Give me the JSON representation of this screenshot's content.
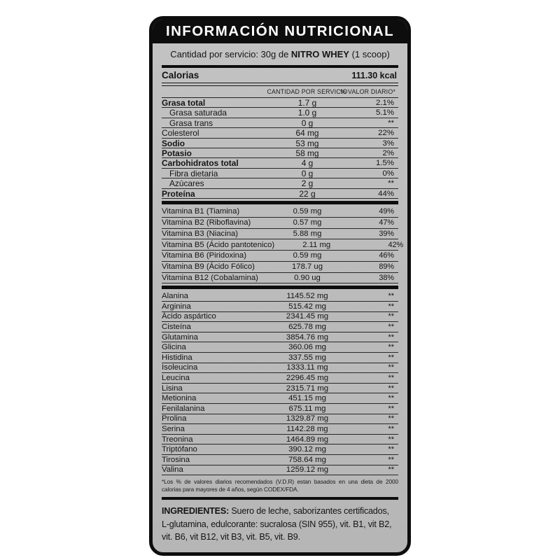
{
  "colors": {
    "page_background": "#ffffff",
    "label_background": "#bcbcbc",
    "band_background": "#0d0d0d",
    "text": "#141414"
  },
  "label": {
    "title": "INFORMACIÓN NUTRICIONAL",
    "serving_line": {
      "prefix": "Cantidad por servicio: 30g de ",
      "product": "NITRO WHEY",
      "suffix": " (1 scoop)"
    },
    "calories": {
      "label": "Calorias",
      "value": "111.30 kcal"
    },
    "columns": {
      "amount": "CANTIDAD POR SERVICIO",
      "dv": "% VALOR DIARIO*"
    },
    "nutrients": [
      {
        "name": "Grasa total",
        "amount": "1.7 g",
        "dv": "2.1%",
        "bold": true
      },
      {
        "name": "Grasa saturada",
        "amount": "1.0 g",
        "dv": "5.1%",
        "indent": true
      },
      {
        "name": "Grasa trans",
        "amount": "0 g",
        "dv": "**",
        "indent": true
      },
      {
        "name": "Colesterol",
        "amount": "64 mg",
        "dv": "22%"
      },
      {
        "name": "Sodio",
        "amount": "53 mg",
        "dv": "3%",
        "bold": true
      },
      {
        "name": "Potasio",
        "amount": "58 mg",
        "dv": "2%",
        "bold": true
      },
      {
        "name": "Carbohidratos total",
        "amount": "4 g",
        "dv": "1.5%",
        "bold": true
      },
      {
        "name": "Fibra dietaria",
        "amount": "0 g",
        "dv": "0%",
        "indent": true
      },
      {
        "name": "Azúcares",
        "amount": "2 g",
        "dv": "**",
        "indent": true
      },
      {
        "name": "Proteína",
        "amount": "22 g",
        "dv": "44%",
        "bold": true
      }
    ],
    "vitamins": [
      {
        "name": "Vitamina B1 (Tiamina)",
        "amount": "0.59 mg",
        "dv": "49%"
      },
      {
        "name": "Vitamina B2 (Riboflavina)",
        "amount": "0.57 mg",
        "dv": "47%"
      },
      {
        "name": "Vitamina B3 (Niacina)",
        "amount": "5.88 mg",
        "dv": "39%"
      },
      {
        "name": "Vitamina B5 (Ácido pantotenico)",
        "amount": "2.11 mg",
        "dv": "42%"
      },
      {
        "name": "Vitamina B6 (Piridoxina)",
        "amount": "0.59 mg",
        "dv": "46%"
      },
      {
        "name": "Vitamina B9 (Ácido Fólico)",
        "amount": "178.7 ug",
        "dv": "89%"
      },
      {
        "name": "Vitamina B12 (Cobalamina)",
        "amount": "0.90 ug",
        "dv": "38%"
      }
    ],
    "amino_acids": [
      {
        "name": "Alanina",
        "amount": "1145.52 mg",
        "dv": "**"
      },
      {
        "name": "Arginina",
        "amount": "515.42 mg",
        "dv": "**"
      },
      {
        "name": "Ácido aspártico",
        "amount": "2341.45 mg",
        "dv": "**"
      },
      {
        "name": "Cisteína",
        "amount": "625.78 mg",
        "dv": "**"
      },
      {
        "name": "Glutamina",
        "amount": "3854.76 mg",
        "dv": "**"
      },
      {
        "name": "Glicina",
        "amount": "360.06 mg",
        "dv": "**"
      },
      {
        "name": "Histidina",
        "amount": "337.55 mg",
        "dv": "**"
      },
      {
        "name": "Isoleucina",
        "amount": "1333.11 mg",
        "dv": "**"
      },
      {
        "name": "Leucina",
        "amount": "2296.45 mg",
        "dv": "**"
      },
      {
        "name": "Lisina",
        "amount": "2315.71 mg",
        "dv": "**"
      },
      {
        "name": "Metionina",
        "amount": "451.15 mg",
        "dv": "**"
      },
      {
        "name": "Fenilalanina",
        "amount": "675.11 mg",
        "dv": "**"
      },
      {
        "name": "Prolina",
        "amount": "1329.87 mg",
        "dv": "**"
      },
      {
        "name": "Serina",
        "amount": "1142.28 mg",
        "dv": "**"
      },
      {
        "name": "Treonina",
        "amount": "1464.89 mg",
        "dv": "**"
      },
      {
        "name": "Triptófano",
        "amount": "390.12 mg",
        "dv": "**"
      },
      {
        "name": "Tirosina",
        "amount": "758.64 mg",
        "dv": "**"
      },
      {
        "name": "Valina",
        "amount": "1259.12 mg",
        "dv": "**"
      }
    ],
    "footnote": "*Los % de valores diarios recomendados (V.D.R) estan basados en una dieta de 2000 calorias para mayores de 4 años, según CODEX/FDA.",
    "ingredients": {
      "label": "INGREDIENTES:",
      "text": " Suero de leche, saborizantes certificados, L-glutamina, edulcorante: sucralosa (SIN 955), vit. B1, vit B2, vit. B6, vit B12, vit B3, vit. B5, vit. B9."
    }
  }
}
